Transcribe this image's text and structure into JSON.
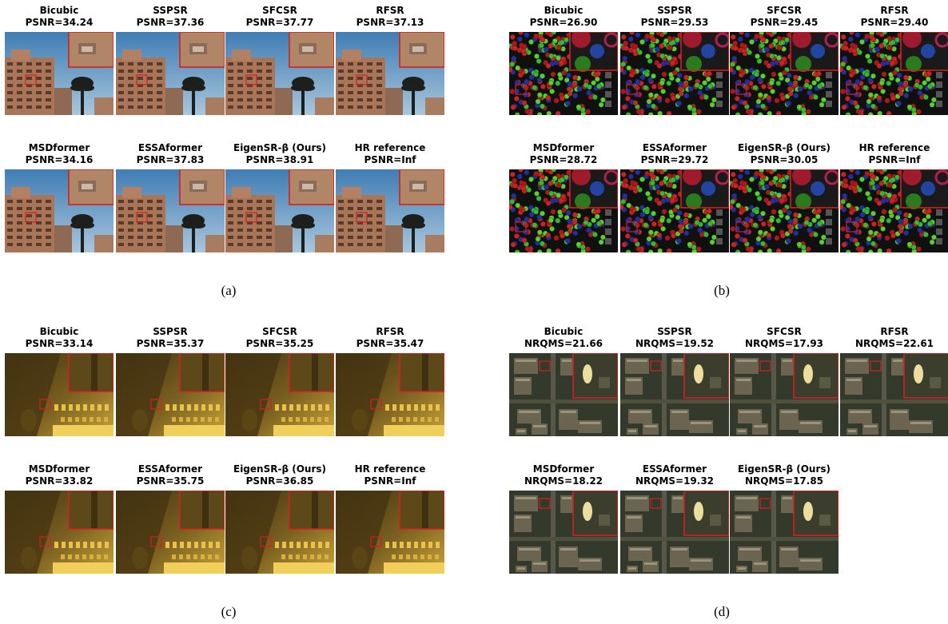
{
  "panels": [
    {
      "label": "(a)",
      "scene": "building",
      "captions": [
        {
          "method": "Bicubic",
          "metric": "PSNR=34.24"
        },
        {
          "method": "SSPSR",
          "metric": "PSNR=37.36"
        },
        {
          "method": "SFCSR",
          "metric": "PSNR=37.77"
        },
        {
          "method": "RFSR",
          "metric": "PSNR=37.13"
        },
        {
          "method": "MSDformer",
          "metric": "PSNR=34.16"
        },
        {
          "method": "ESSAformer",
          "metric": "PSNR=37.83"
        },
        {
          "method": "EigenSR-β (Ours)",
          "metric": "PSNR=38.91"
        },
        {
          "method": "HR reference",
          "metric": "PSNR=Inf"
        }
      ]
    },
    {
      "label": "(b)",
      "scene": "beads",
      "captions": [
        {
          "method": "Bicubic",
          "metric": "PSNR=26.90"
        },
        {
          "method": "SSPSR",
          "metric": "PSNR=29.53"
        },
        {
          "method": "SFCSR",
          "metric": "PSNR=29.45"
        },
        {
          "method": "RFSR",
          "metric": "PSNR=29.40"
        },
        {
          "method": "MSDformer",
          "metric": "PSNR=28.72"
        },
        {
          "method": "ESSAformer",
          "metric": "PSNR=29.72"
        },
        {
          "method": "EigenSR-β (Ours)",
          "metric": "PSNR=30.05"
        },
        {
          "method": "HR reference",
          "metric": "PSNR=Inf"
        }
      ]
    },
    {
      "label": "(c)",
      "scene": "ornament",
      "captions": [
        {
          "method": "Bicubic",
          "metric": "PSNR=33.14"
        },
        {
          "method": "SSPSR",
          "metric": "PSNR=35.37"
        },
        {
          "method": "SFCSR",
          "metric": "PSNR=35.25"
        },
        {
          "method": "RFSR",
          "metric": "PSNR=35.47"
        },
        {
          "method": "MSDformer",
          "metric": "PSNR=33.82"
        },
        {
          "method": "ESSAformer",
          "metric": "PSNR=35.75"
        },
        {
          "method": "EigenSR-β (Ours)",
          "metric": "PSNR=36.85"
        },
        {
          "method": "HR reference",
          "metric": "PSNR=Inf"
        }
      ]
    },
    {
      "label": "(d)",
      "scene": "aerial",
      "captions": [
        {
          "method": "Bicubic",
          "metric": "NRQMS=21.66"
        },
        {
          "method": "SSPSR",
          "metric": "NRQMS=19.52"
        },
        {
          "method": "SFCSR",
          "metric": "NRQMS=17.93"
        },
        {
          "method": "RFSR",
          "metric": "NRQMS=22.61"
        },
        {
          "method": "MSDformer",
          "metric": "NRQMS=18.22"
        },
        {
          "method": "ESSAformer",
          "metric": "NRQMS=19.32"
        },
        {
          "method": "EigenSR-β (Ours)",
          "metric": "NRQMS=17.85"
        }
      ]
    }
  ],
  "colors": {
    "highlight_box": "#d42020",
    "sky": "#6f9fc6",
    "building": "#b8866a",
    "beads_bg": "#111111",
    "ornament": "#6b5418",
    "aerial": "#3a4030"
  }
}
